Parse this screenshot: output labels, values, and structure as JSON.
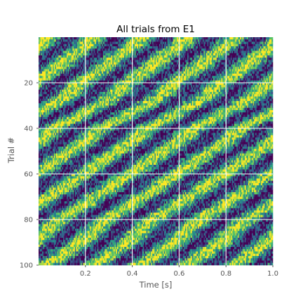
{
  "chart_data": {
    "type": "heatmap",
    "title": "All trials from E1",
    "xlabel": "Time [s]",
    "ylabel": "Trial #",
    "xlim": [
      0.0,
      1.0
    ],
    "ylim": [
      100,
      0
    ],
    "x_ticks": [
      0.2,
      0.4,
      0.6,
      0.8,
      1.0
    ],
    "x_tick_labels": [
      "0.2",
      "0.4",
      "0.6",
      "0.8",
      "1.0"
    ],
    "y_ticks": [
      20,
      40,
      60,
      80,
      100
    ],
    "y_tick_labels": [
      "20",
      "40",
      "60",
      "80",
      "100"
    ],
    "n_trials": 100,
    "n_time_bins": 200,
    "colormap": "viridis",
    "grid": true,
    "grid_color": "#ffffff",
    "tick_color": "#555555",
    "signal": {
      "description": "approx. sinusoidal oscillation per trial with a random phase",
      "frequency_hz": 5,
      "phase_shift_per_trial": 0.45,
      "noise_level": 0.35
    },
    "colors": {
      "viridis": [
        "#440154",
        "#3b528b",
        "#21918c",
        "#5ec962",
        "#fde725"
      ]
    }
  }
}
